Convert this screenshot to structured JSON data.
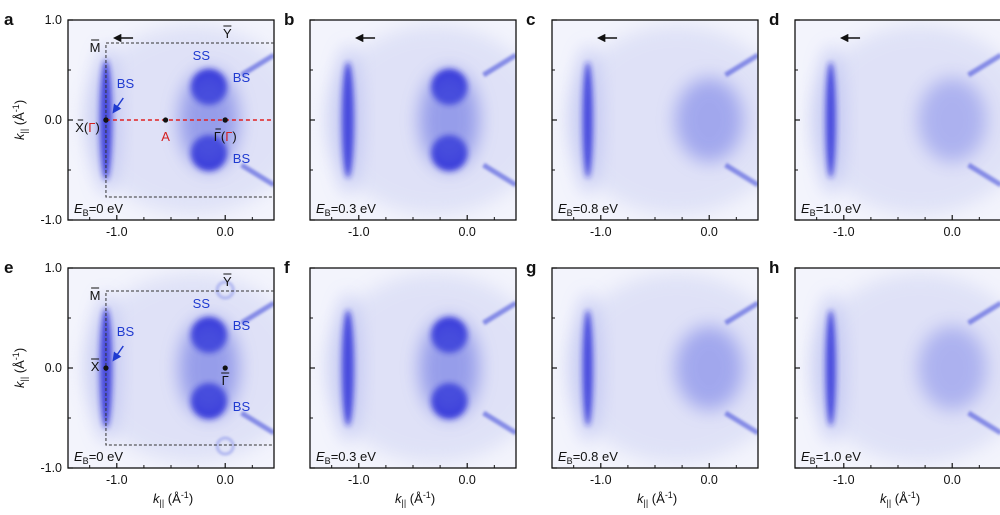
{
  "panels": [
    {
      "label": "a",
      "energy": "0 eV",
      "arrow_label": "←"
    },
    {
      "label": "b",
      "energy": "0.3 eV",
      "arrow_label": "←"
    },
    {
      "label": "c",
      "energy": "0.8 eV",
      "arrow_label": "←"
    },
    {
      "label": "d",
      "energy": "1.0 eV",
      "arrow_label": "←"
    },
    {
      "label": "e",
      "energy": "0 eV"
    },
    {
      "label": "f",
      "energy": "0.3 eV"
    },
    {
      "label": "g",
      "energy": "0.8 eV"
    },
    {
      "label": "h",
      "energy": "1.0 eV"
    }
  ],
  "eb_symbol": "E",
  "eb_sub": "B",
  "eb_eq": "=",
  "axis": {
    "x_ticks": [
      "-1.0",
      "0.0"
    ],
    "y_ticks": [
      "1.0",
      "0.0",
      "-1.0"
    ],
    "x_label_main": "k",
    "x_label_sub": "||",
    "x_label_unit": "(Å",
    "x_label_exp": "-1",
    "x_label_close": ")",
    "y_label_main": "k",
    "y_label_sub": "||",
    "y_label_unit": "(Å",
    "y_label_exp": "-1",
    "y_label_close": ")"
  },
  "annotations_a": {
    "M": "M",
    "Y": "Y",
    "SS": "SS",
    "BS_top": "BS",
    "BS_left": "BS",
    "BS_bottom": "BS",
    "X": "X",
    "X_paren_open": "(",
    "X_gamma": "Γ",
    "X_paren_close": ")",
    "A": "A",
    "Gamma": "Γ",
    "G_paren_open": "(",
    "G_gamma": "Γ",
    "G_paren_close": ")"
  },
  "annotations_e": {
    "M": "M",
    "Y": "Y",
    "SS": "SS",
    "BS_top": "BS",
    "BS_left": "BS",
    "BS_bottom": "BS",
    "X": "X",
    "Gamma": "Γ"
  },
  "colors": {
    "intensity": "#1f1fd6",
    "cut_line": "#e02020",
    "label_blue": "#1f3ad0",
    "label_red": "#d42020"
  },
  "chart_data": {
    "type": "heatmap",
    "title": "",
    "xlabel": "k|| (Å-1)",
    "ylabel": "k|| (Å-1)",
    "xlim": [
      -1.45,
      0.45
    ],
    "ylim": [
      -1.0,
      1.0
    ],
    "x_ticks": [
      -1.0,
      0.0
    ],
    "y_ticks": [
      1.0,
      0.0,
      -1.0
    ],
    "panels": [
      "a",
      "b",
      "c",
      "d",
      "e",
      "f",
      "g",
      "h"
    ],
    "binding_energies_eV": [
      0,
      0.3,
      0.8,
      1.0,
      0,
      0.3,
      0.8,
      1.0
    ],
    "high_symmetry_points": {
      "X": [
        -1.1,
        0.0
      ],
      "A": [
        -0.55,
        0.0
      ],
      "Gamma": [
        0.0,
        0.0
      ]
    },
    "brillouin_zone_edges": {
      "x": -1.1,
      "y": [
        -0.77,
        0.77
      ]
    }
  }
}
